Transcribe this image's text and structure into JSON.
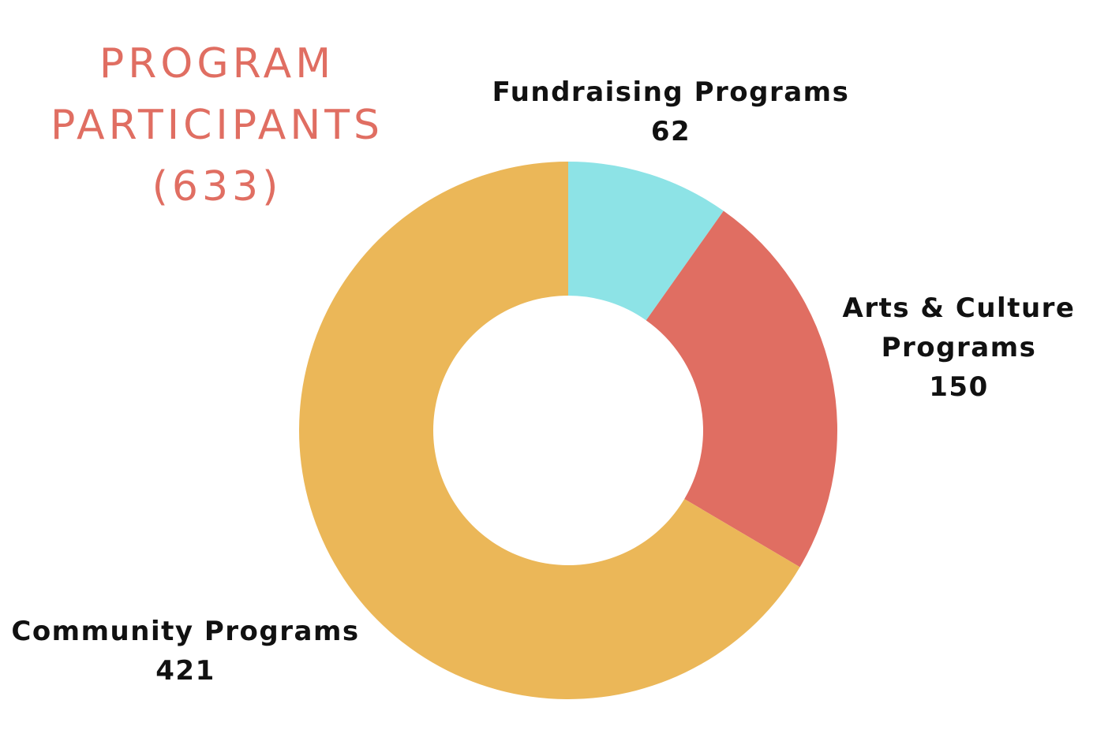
{
  "title": {
    "line1": "PROGRAM",
    "line2": "PARTICIPANTS",
    "line3": "(633)"
  },
  "chart_data": {
    "type": "pie",
    "donut": true,
    "title": "PROGRAM PARTICIPANTS (633)",
    "total": 633,
    "start_angle_deg": 0,
    "direction": "clockwise",
    "slices": [
      {
        "name": "Fundraising Programs",
        "label_lines": [
          "Fundraising Programs"
        ],
        "value": 62,
        "value_label": "62",
        "color": "#8de3e6"
      },
      {
        "name": "Arts & Culture Programs",
        "label_lines": [
          "Arts & Culture",
          "Programs"
        ],
        "value": 150,
        "value_label": "150",
        "color": "#e06e62"
      },
      {
        "name": "Community Programs",
        "label_lines": [
          "Community Programs"
        ],
        "value": 421,
        "value_label": "421",
        "color": "#ebb758"
      }
    ]
  },
  "colors": {
    "title": "#e06e62",
    "label_text": "#111111",
    "background": "#ffffff"
  }
}
